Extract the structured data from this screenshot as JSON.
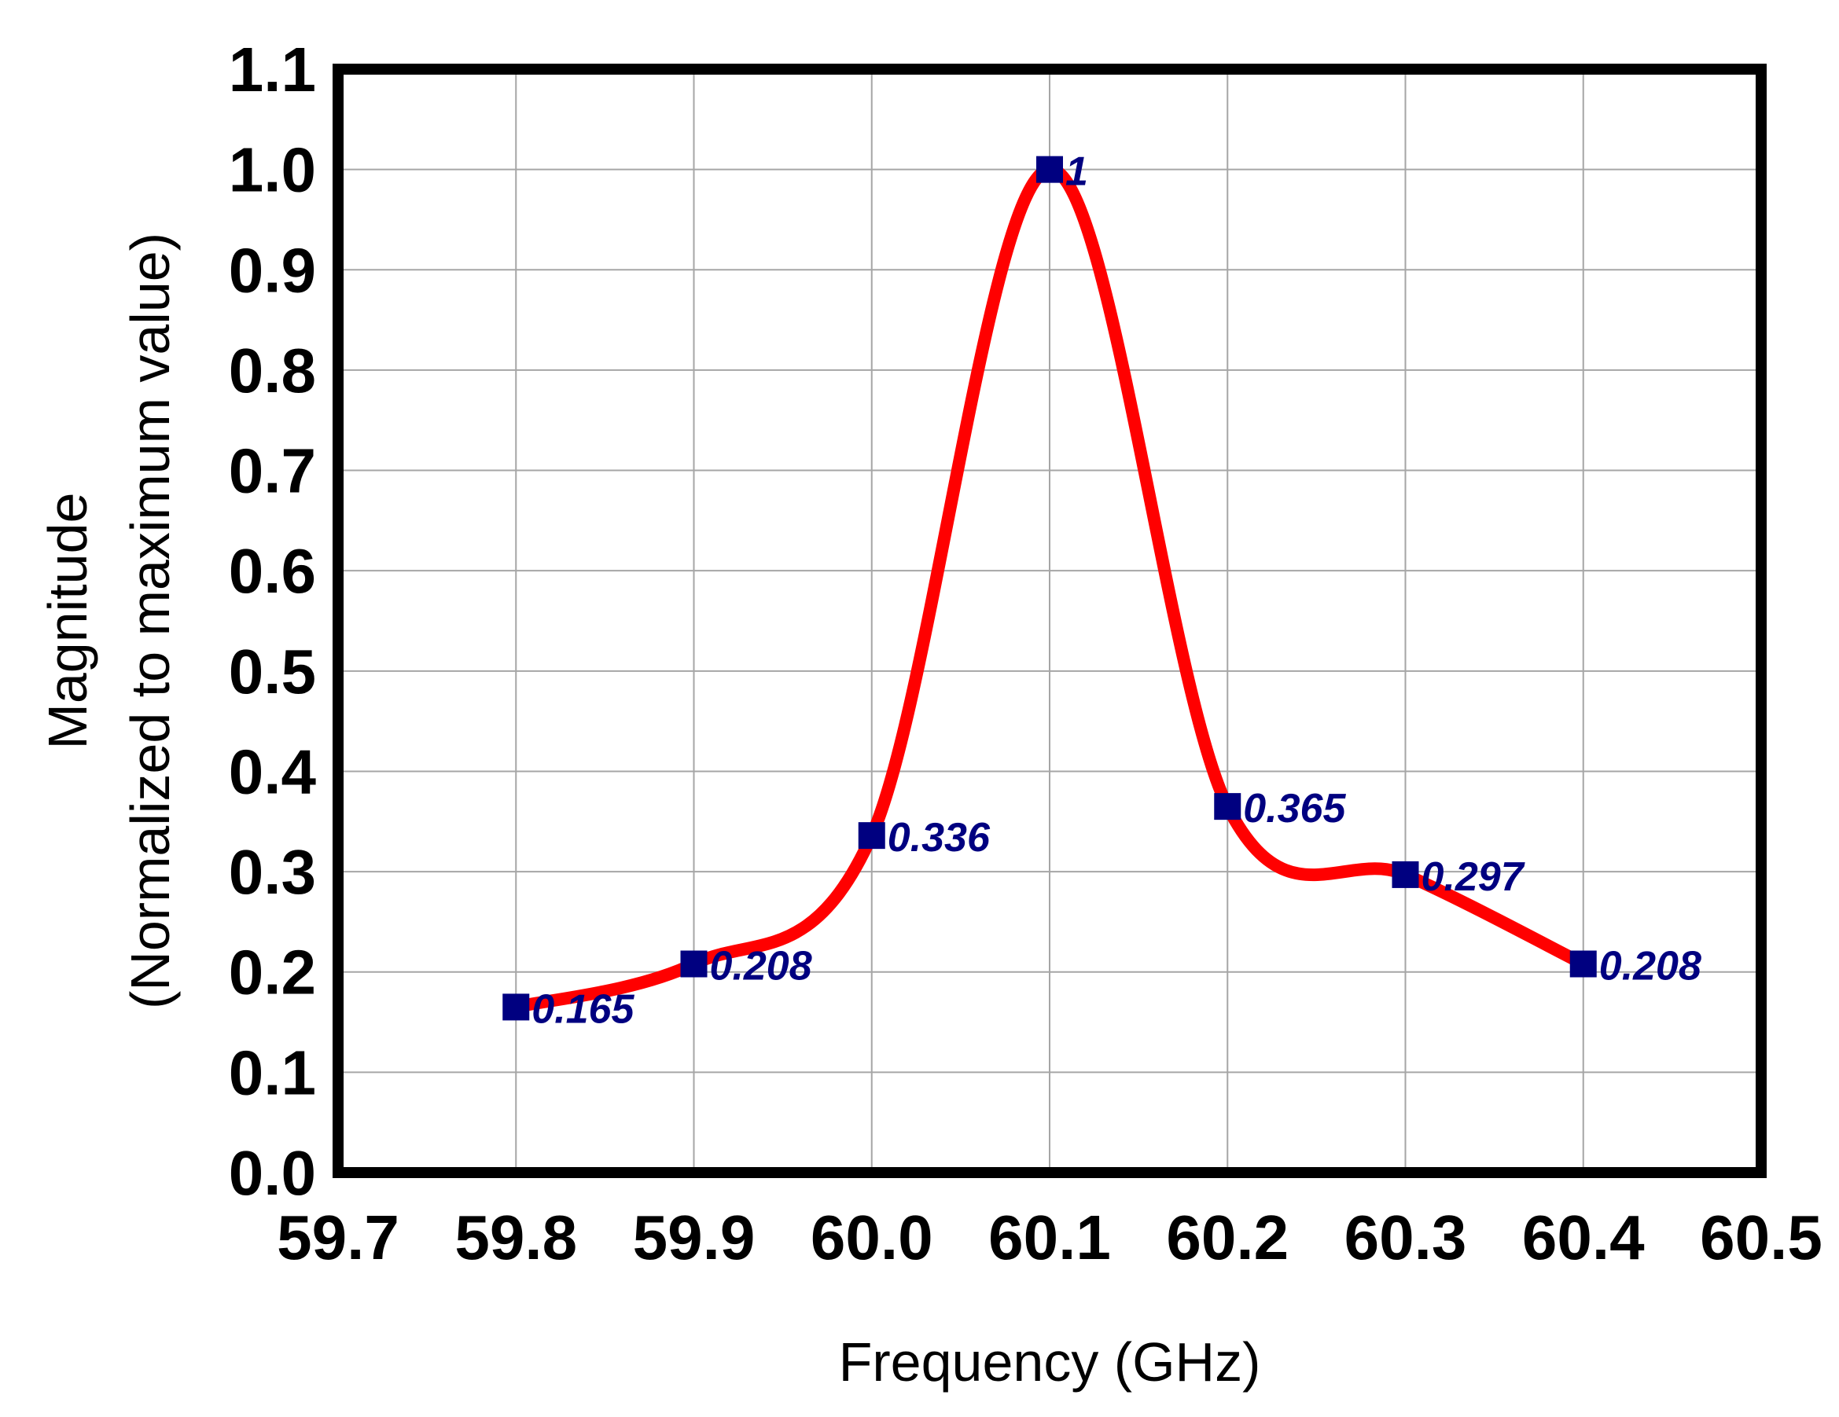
{
  "chart_data": {
    "type": "line",
    "title": "",
    "xlabel": "Frequency (GHz)",
    "ylabel_lines": [
      "Magnitude",
      "(Normalized to maximum value)"
    ],
    "xlim": [
      59.7,
      60.5
    ],
    "ylim": [
      0.0,
      1.1
    ],
    "x_ticks": [
      "59.7",
      "59.8",
      "59.9",
      "60.0",
      "60.1",
      "60.2",
      "60.3",
      "60.4",
      "60.5"
    ],
    "y_ticks": [
      "0.0",
      "0.1",
      "0.2",
      "0.3",
      "0.4",
      "0.5",
      "0.6",
      "0.7",
      "0.8",
      "0.9",
      "1.0",
      "1.1"
    ],
    "grid": true,
    "legend": "none",
    "smoothed": true,
    "series": [
      {
        "x": [
          59.8,
          59.9,
          60.0,
          60.1,
          60.2,
          60.3,
          60.4
        ],
        "y": [
          0.165,
          0.208,
          0.336,
          1,
          0.365,
          0.297,
          0.208
        ],
        "labels": [
          "0.165",
          "0.208",
          "0.336",
          "1",
          "0.365",
          "0.297",
          "0.208"
        ],
        "line_color": "#ff0000",
        "marker_color": "#000080"
      }
    ]
  }
}
